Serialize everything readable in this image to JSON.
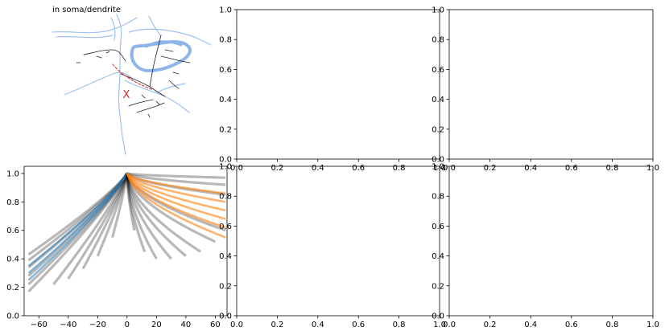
{
  "figure": {
    "morph_panel": {
      "title": "in soma/dendrite",
      "marker": "X"
    }
  },
  "chart_data": [
    {
      "panel": "top-middle",
      "type": "line",
      "empty": true,
      "xlim": [
        0,
        1
      ],
      "ylim": [
        0,
        1
      ],
      "x_ticks": [
        "0.0",
        "0.2",
        "0.4",
        "0.6",
        "0.8",
        "1.0"
      ],
      "y_ticks": [
        "0.0",
        "0.2",
        "0.4",
        "0.6",
        "0.8",
        "1.0"
      ]
    },
    {
      "panel": "top-right",
      "type": "line",
      "empty": true,
      "xlim": [
        0,
        1
      ],
      "ylim": [
        0,
        1
      ],
      "x_ticks": [
        "0.0",
        "0.2",
        "0.4",
        "0.6",
        "0.8",
        "1.0"
      ],
      "y_ticks": [
        "0.0",
        "0.2",
        "0.4",
        "0.6",
        "0.8",
        "1.0"
      ]
    },
    {
      "panel": "bottom-left",
      "type": "line",
      "xlim": [
        -70,
        68
      ],
      "ylim": [
        0,
        1.05
      ],
      "x_ticks": [
        "−60",
        "−40",
        "−20",
        "0",
        "20",
        "40",
        "60"
      ],
      "y_ticks": [
        "0.0",
        "0.2",
        "0.4",
        "0.6",
        "0.8",
        "1.0"
      ],
      "colors": {
        "gray": "#000000",
        "left_highlight": "#1f77b4",
        "right_highlight": "#ff7f0e"
      },
      "series": [
        {
          "group": "gray-left",
          "x_end": -67,
          "y_end": 0.17
        },
        {
          "group": "gray-left",
          "x_end": -67,
          "y_end": 0.22
        },
        {
          "group": "gray-left",
          "x_end": -67,
          "y_end": 0.28
        },
        {
          "group": "gray-left",
          "x_end": -67,
          "y_end": 0.34
        },
        {
          "group": "gray-left",
          "x_end": -67,
          "y_end": 0.39
        },
        {
          "group": "gray-left",
          "x_end": -67,
          "y_end": 0.43
        },
        {
          "group": "gray-left",
          "x_end": -50,
          "y_end": 0.22
        },
        {
          "group": "gray-left",
          "x_end": -40,
          "y_end": 0.26
        },
        {
          "group": "gray-left",
          "x_end": -30,
          "y_end": 0.33
        },
        {
          "group": "gray-left",
          "x_end": -20,
          "y_end": 0.42
        },
        {
          "group": "gray-left",
          "x_end": -10,
          "y_end": 0.55
        },
        {
          "group": "blue-left",
          "x_end": -67,
          "y_end": 0.25
        },
        {
          "group": "blue-left",
          "x_end": -67,
          "y_end": 0.3
        },
        {
          "group": "blue-left",
          "x_end": -67,
          "y_end": 0.35
        },
        {
          "group": "gray-right",
          "x_end": 5,
          "y_end": 0.6
        },
        {
          "group": "gray-right",
          "x_end": 12,
          "y_end": 0.45
        },
        {
          "group": "gray-right",
          "x_end": 20,
          "y_end": 0.4
        },
        {
          "group": "gray-right",
          "x_end": 30,
          "y_end": 0.4
        },
        {
          "group": "gray-right",
          "x_end": 40,
          "y_end": 0.42
        },
        {
          "group": "gray-right",
          "x_end": 50,
          "y_end": 0.45
        },
        {
          "group": "gray-right",
          "x_end": 60,
          "y_end": 0.52
        },
        {
          "group": "gray-right",
          "x_end": 67,
          "y_end": 0.6
        },
        {
          "group": "gray-right",
          "x_end": 67,
          "y_end": 0.85
        },
        {
          "group": "gray-right",
          "x_end": 67,
          "y_end": 0.92
        },
        {
          "group": "gray-right",
          "x_end": 67,
          "y_end": 0.97
        },
        {
          "group": "orange-right",
          "x_end": 67,
          "y_end": 0.55
        },
        {
          "group": "orange-right",
          "x_end": 67,
          "y_end": 0.62
        },
        {
          "group": "orange-right",
          "x_end": 67,
          "y_end": 0.68
        },
        {
          "group": "orange-right",
          "x_end": 67,
          "y_end": 0.74
        },
        {
          "group": "orange-right",
          "x_end": 67,
          "y_end": 0.8
        },
        {
          "group": "orange-right",
          "x_end": 67,
          "y_end": 0.86
        }
      ]
    },
    {
      "panel": "bottom-middle",
      "type": "line",
      "empty": true,
      "xlim": [
        0,
        1
      ],
      "ylim": [
        0,
        1
      ],
      "x_ticks": [
        "0.0",
        "0.2",
        "0.4",
        "0.6",
        "0.8",
        "1.0"
      ],
      "y_ticks": [
        "0.0",
        "0.2",
        "0.4",
        "0.6",
        "0.8",
        "1.0"
      ]
    },
    {
      "panel": "bottom-right",
      "type": "line",
      "empty": true,
      "xlim": [
        0,
        1
      ],
      "ylim": [
        0,
        1
      ],
      "x_ticks": [
        "0.0",
        "0.2",
        "0.4",
        "0.6",
        "0.8",
        "1.0"
      ],
      "y_ticks": [
        "0.0",
        "0.2",
        "0.4",
        "0.6",
        "0.8",
        "1.0"
      ]
    }
  ]
}
